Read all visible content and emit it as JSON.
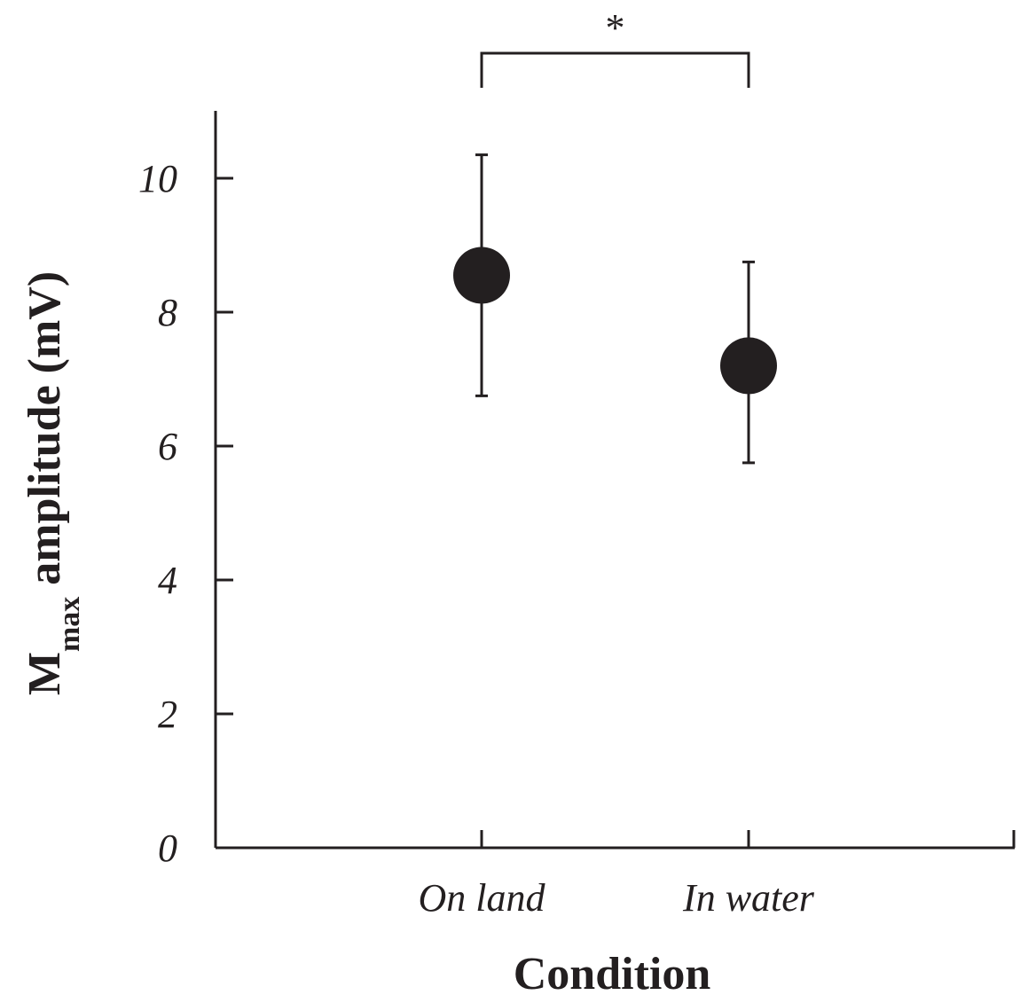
{
  "chart_data": {
    "type": "scatter",
    "title": "",
    "xlabel": "Condition",
    "ylabel": {
      "main": "M",
      "sub": "max",
      "rest": " amplitude (mV)"
    },
    "categories": [
      "On land",
      "In water"
    ],
    "ylim": [
      0,
      11
    ],
    "yticks": [
      0,
      2,
      4,
      6,
      8,
      10
    ],
    "ytick_labels": [
      "0",
      "2",
      "4",
      "6",
      "8",
      "10"
    ],
    "series": [
      {
        "values": [
          8.55,
          7.2
        ],
        "error_low": [
          6.75,
          5.75
        ],
        "error_high": [
          10.35,
          8.75
        ],
        "color": "#231f20"
      }
    ],
    "annotations": [
      {
        "type": "significance_bracket",
        "from": "On land",
        "to": "In water",
        "text": "*"
      }
    ],
    "grid": false,
    "legend": "none"
  }
}
